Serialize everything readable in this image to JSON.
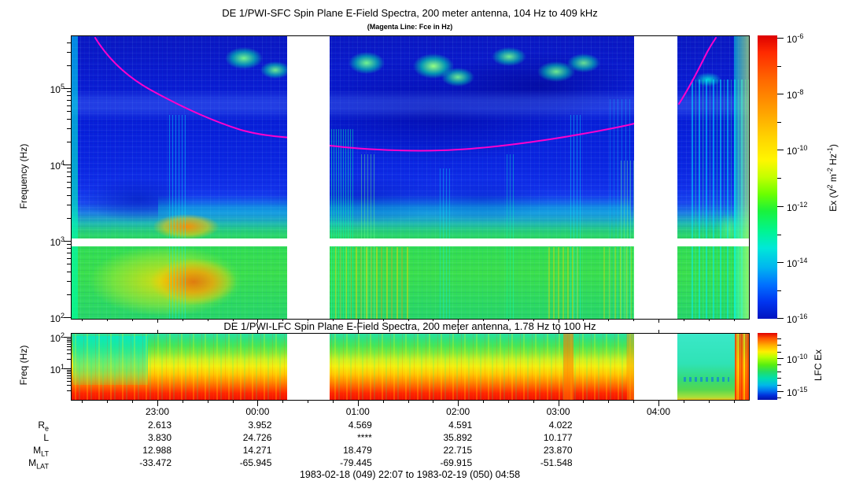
{
  "sfc": {
    "title": "DE 1/PWI-SFC  Spin Plane E-Field Spectra, 200 meter antenna, 104 Hz to 409 kHz",
    "subtitle": "(Magenta Line: Fce in Hz)",
    "ylabel": "Frequency (Hz)",
    "yticks": [
      "10^5",
      "10^4",
      "10^3",
      "10^2"
    ],
    "colorbar": {
      "label": "Ex (V^2 m^-2 Hz^-1)",
      "ticks": [
        "10^-6",
        "10^-8",
        "10^-10",
        "10^-12",
        "10^-14",
        "10^-16"
      ]
    },
    "fce_line_color": "#ff00cc"
  },
  "lfc": {
    "title": "DE 1/PWI-LFC  Spin Plane E-Field Spectra, 200 meter antenna, 1.78 Hz to 100 Hz",
    "ylabel": "Freq (Hz)",
    "yticks": [
      "10^2",
      "10^1"
    ],
    "colorbar": {
      "label": "LFC Ex",
      "ticks": [
        "10^-10",
        "10^-15"
      ]
    }
  },
  "time_axis": {
    "labels": [
      "23:00",
      "00:00",
      "01:00",
      "02:00",
      "03:00",
      "04:00"
    ]
  },
  "ephemeris": {
    "row_labels": [
      "R_e",
      "L",
      "M_LT",
      "M_LAT"
    ],
    "columns": [
      {
        "time": "23:00",
        "values": [
          "2.613",
          "3.830",
          "12.988",
          "-33.472"
        ]
      },
      {
        "time": "00:00",
        "values": [
          "3.952",
          "24.726",
          "14.271",
          "-65.945"
        ]
      },
      {
        "time": "01:00",
        "values": [
          "4.569",
          "****",
          "18.479",
          "-79.445"
        ]
      },
      {
        "time": "02:00",
        "values": [
          "4.591",
          "35.892",
          "22.715",
          "-69.915"
        ]
      },
      {
        "time": "03:00",
        "values": [
          "4.022",
          "10.177",
          "23.870",
          "-51.548"
        ]
      },
      {
        "time": "04:00",
        "values": [
          "",
          "",
          "",
          ""
        ]
      }
    ],
    "footer": "1983-02-18 (049) 22:07 to 1983-02-19 (050) 04:58"
  },
  "chart_data": [
    {
      "type": "heatmap",
      "name": "SFC spectrogram",
      "title": "DE 1/PWI-SFC  Spin Plane E-Field Spectra, 200 meter antenna, 104 Hz to 409 kHz",
      "subtitle": "(Magenta Line: Fce in Hz)",
      "ylabel": "Frequency (Hz)",
      "y_scale": "log",
      "ylim_hz": [
        100,
        409000
      ],
      "ytick_labels": [
        "10^2",
        "10^3",
        "10^4",
        "10^5"
      ],
      "x_tick_labels": [
        "23:00",
        "00:00",
        "01:00",
        "02:00",
        "03:00",
        "04:00"
      ],
      "time_range": "1983-02-18 22:07 to 1983-02-19 04:58",
      "colorbar": {
        "label": "Ex (V^2 m^-2 Hz^-1)",
        "scale": "log",
        "tick_labels": [
          "10^-6",
          "10^-8",
          "10^-10",
          "10^-12",
          "10^-14",
          "10^-16"
        ],
        "range": [
          1e-16,
          1e-06
        ]
      },
      "data_gaps_ut": [
        [
          "00:17",
          "00:43"
        ],
        [
          "03:45",
          "04:11"
        ]
      ],
      "instrument_band_gap_hz": 1000,
      "overlay_line": {
        "label": "Fce in Hz",
        "color": "#ff00cc",
        "points": [
          {
            "ut": "22:24",
            "hz": 420000
          },
          {
            "ut": "23:09",
            "hz": 58000
          },
          {
            "ut": "23:47",
            "hz": 30000
          },
          {
            "ut": "00:17",
            "hz": 23000
          },
          {
            "ut": "00:43",
            "hz": 18000
          },
          {
            "ut": "01:45",
            "hz": 16000
          },
          {
            "ut": "02:56",
            "hz": 21000
          },
          {
            "ut": "03:45",
            "hz": 35000
          },
          {
            "ut": "04:12",
            "hz": 65000
          },
          {
            "ut": "04:38",
            "hz": 460000
          }
        ]
      },
      "features": [
        "intense broadband emission below ~3 kHz reaching ~1e-7 V^2 m^-2 Hz^-1 (orange-red) near 23:10-23:50",
        "discrete green emission patches between 50 and 300 kHz",
        "quiet dark-blue region 20-400 kHz",
        "white horizontal instrument gap at ~1 kHz",
        "enhanced cyan/green vertical turbulence striations after 04:11"
      ]
    },
    {
      "type": "heatmap",
      "name": "LFC spectrogram",
      "title": "DE 1/PWI-LFC  Spin Plane E-Field Spectra, 200 meter antenna, 1.78 Hz to 100 Hz",
      "ylabel": "Freq (Hz)",
      "y_scale": "log",
      "ylim_hz": [
        1.78,
        100
      ],
      "ytick_labels": [
        "10^1",
        "10^2"
      ],
      "colorbar": {
        "label": "LFC Ex",
        "scale": "log",
        "tick_labels": [
          "10^-10",
          "10^-15"
        ]
      },
      "data_gaps_ut": [
        [
          "00:17",
          "00:43"
        ],
        [
          "03:45",
          "04:11"
        ]
      ],
      "features": [
        "intensity increases toward low frequency, red below ~5 Hz",
        "cyan-green quiet interval 04:11-04:45 after second data gap",
        "strong orange vertical enhancement near 03:03"
      ]
    },
    {
      "type": "table",
      "name": "orbit ephemeris",
      "columns": [
        "UT",
        "R_e",
        "L",
        "M_LT",
        "M_LAT"
      ],
      "rows": [
        [
          "23:00",
          "2.613",
          "3.830",
          "12.988",
          "-33.472"
        ],
        [
          "00:00",
          "3.952",
          "24.726",
          "14.271",
          "-65.945"
        ],
        [
          "01:00",
          "4.569",
          "****",
          "18.479",
          "-79.445"
        ],
        [
          "02:00",
          "4.591",
          "35.892",
          "22.715",
          "-69.915"
        ],
        [
          "03:00",
          "4.022",
          "10.177",
          "23.870",
          "-51.548"
        ],
        [
          "04:00",
          "",
          "",
          "",
          ""
        ]
      ],
      "footer": "1983-02-18 (049) 22:07 to 1983-02-19 (050) 04:58"
    }
  ]
}
